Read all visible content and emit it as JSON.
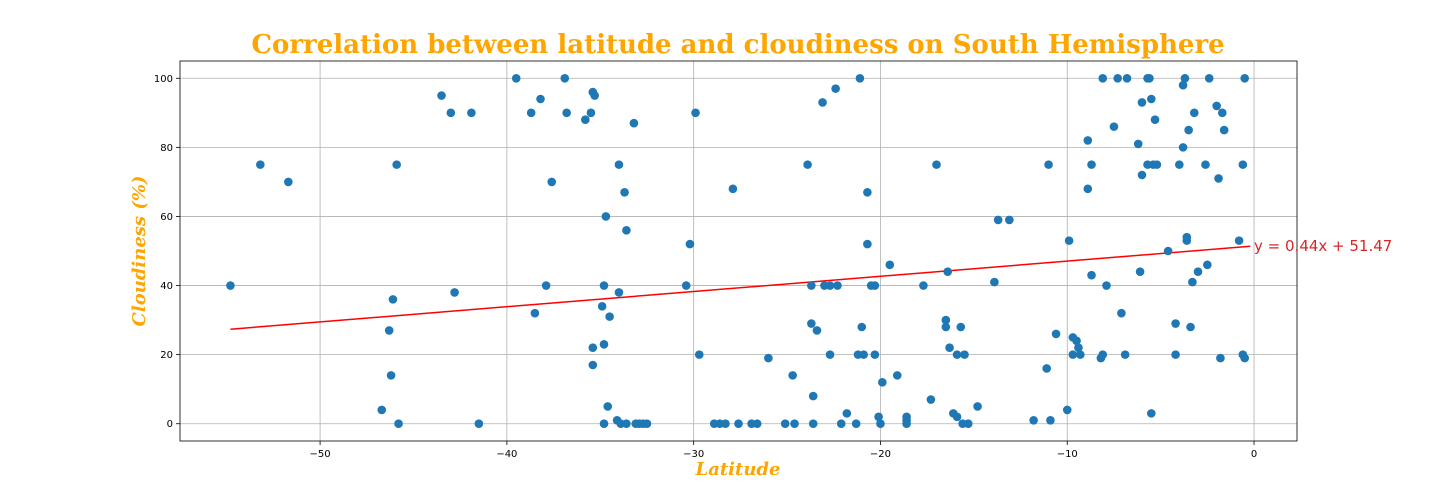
{
  "chart_data": {
    "type": "scatter",
    "title": "Correlation between latitude and cloudiness on South Hemisphere",
    "xlabel": "Latitude",
    "ylabel": "Cloudiness (%)",
    "xlim": [
      -57.5,
      2.3
    ],
    "ylim": [
      -5,
      105
    ],
    "x_ticks": [
      -50,
      -40,
      -30,
      -20,
      -10,
      0
    ],
    "x_tick_labels": [
      "−50",
      "−40",
      "−30",
      "−20",
      "−10",
      "0"
    ],
    "y_ticks": [
      0,
      20,
      40,
      60,
      80,
      100
    ],
    "y_tick_labels": [
      "0",
      "20",
      "40",
      "60",
      "80",
      "100"
    ],
    "grid": true,
    "title_color": "#FFA500",
    "label_color": "#FFA500",
    "point_color": "#1f77b4",
    "regression": {
      "slope": 0.44,
      "intercept": 51.47,
      "x_range": [
        -54.8,
        -0.2
      ],
      "color": "#ff0000",
      "equation_text": "y = 0.44x + 51.47",
      "equation_position": [
        0,
        50
      ]
    },
    "points": [
      [
        -54.8,
        40
      ],
      [
        -53.2,
        75
      ],
      [
        -51.7,
        70
      ],
      [
        -46.7,
        4
      ],
      [
        -46.3,
        27
      ],
      [
        -46.2,
        14
      ],
      [
        -46.1,
        36
      ],
      [
        -45.9,
        75
      ],
      [
        -45.8,
        0
      ],
      [
        -43.5,
        95
      ],
      [
        -43.0,
        90
      ],
      [
        -42.8,
        38
      ],
      [
        -41.9,
        90
      ],
      [
        -41.5,
        0
      ],
      [
        -39.5,
        100
      ],
      [
        -38.7,
        90
      ],
      [
        -38.5,
        32
      ],
      [
        -38.2,
        94
      ],
      [
        -37.9,
        40
      ],
      [
        -37.6,
        70
      ],
      [
        -36.9,
        100
      ],
      [
        -36.8,
        90
      ],
      [
        -35.8,
        88
      ],
      [
        -35.5,
        90
      ],
      [
        -35.4,
        96
      ],
      [
        -35.3,
        95
      ],
      [
        -35.4,
        22
      ],
      [
        -35.4,
        17
      ],
      [
        -34.9,
        34
      ],
      [
        -34.8,
        40
      ],
      [
        -34.8,
        23
      ],
      [
        -34.8,
        0
      ],
      [
        -34.7,
        60
      ],
      [
        -34.6,
        5
      ],
      [
        -34.5,
        31
      ],
      [
        -34.1,
        1
      ],
      [
        -34.0,
        75
      ],
      [
        -34.0,
        38
      ],
      [
        -33.9,
        0
      ],
      [
        -33.7,
        67
      ],
      [
        -33.6,
        56
      ],
      [
        -33.6,
        0
      ],
      [
        -33.2,
        87
      ],
      [
        -33.1,
        0
      ],
      [
        -32.9,
        0
      ],
      [
        -32.7,
        0
      ],
      [
        -32.5,
        0
      ],
      [
        -30.4,
        40
      ],
      [
        -30.2,
        52
      ],
      [
        -29.9,
        90
      ],
      [
        -29.7,
        20
      ],
      [
        -28.9,
        0
      ],
      [
        -28.6,
        0
      ],
      [
        -28.3,
        0
      ],
      [
        -27.9,
        68
      ],
      [
        -27.6,
        0
      ],
      [
        -26.9,
        0
      ],
      [
        -26.6,
        0
      ],
      [
        -26.0,
        19
      ],
      [
        -25.1,
        0
      ],
      [
        -24.7,
        14
      ],
      [
        -24.6,
        0
      ],
      [
        -23.9,
        75
      ],
      [
        -23.7,
        40
      ],
      [
        -23.7,
        29
      ],
      [
        -23.6,
        8
      ],
      [
        -23.6,
        0
      ],
      [
        -23.4,
        27
      ],
      [
        -23.1,
        93
      ],
      [
        -23.0,
        40
      ],
      [
        -22.7,
        40
      ],
      [
        -22.7,
        20
      ],
      [
        -22.4,
        97
      ],
      [
        -22.3,
        40
      ],
      [
        -22.1,
        0
      ],
      [
        -21.8,
        3
      ],
      [
        -21.3,
        0
      ],
      [
        -21.2,
        20
      ],
      [
        -21.1,
        100
      ],
      [
        -21.0,
        28
      ],
      [
        -20.9,
        20
      ],
      [
        -20.7,
        67
      ],
      [
        -20.7,
        52
      ],
      [
        -20.5,
        40
      ],
      [
        -20.3,
        40
      ],
      [
        -20.3,
        20
      ],
      [
        -20.1,
        2
      ],
      [
        -20.0,
        0
      ],
      [
        -19.9,
        12
      ],
      [
        -19.5,
        46
      ],
      [
        -19.1,
        14
      ],
      [
        -18.6,
        2
      ],
      [
        -18.6,
        1
      ],
      [
        -18.6,
        0
      ],
      [
        -17.7,
        40
      ],
      [
        -17.3,
        7
      ],
      [
        -17.0,
        75
      ],
      [
        -16.5,
        28
      ],
      [
        -16.5,
        30
      ],
      [
        -16.4,
        44
      ],
      [
        -16.3,
        22
      ],
      [
        -16.1,
        3
      ],
      [
        -15.9,
        2
      ],
      [
        -15.9,
        20
      ],
      [
        -15.7,
        28
      ],
      [
        -15.6,
        0
      ],
      [
        -15.5,
        20
      ],
      [
        -15.3,
        0
      ],
      [
        -14.8,
        5
      ],
      [
        -13.9,
        41
      ],
      [
        -13.7,
        59
      ],
      [
        -13.1,
        59
      ],
      [
        -11.8,
        1
      ],
      [
        -11.1,
        16
      ],
      [
        -11.0,
        75
      ],
      [
        -10.9,
        1
      ],
      [
        -10.6,
        26
      ],
      [
        -10.0,
        4
      ],
      [
        -9.9,
        53
      ],
      [
        -9.7,
        20
      ],
      [
        -9.7,
        25
      ],
      [
        -9.5,
        24
      ],
      [
        -9.4,
        22
      ],
      [
        -9.3,
        20
      ],
      [
        -8.9,
        82
      ],
      [
        -8.9,
        68
      ],
      [
        -8.7,
        75
      ],
      [
        -8.7,
        43
      ],
      [
        -8.2,
        19
      ],
      [
        -8.1,
        100
      ],
      [
        -8.1,
        20
      ],
      [
        -7.9,
        40
      ],
      [
        -7.5,
        86
      ],
      [
        -7.3,
        100
      ],
      [
        -7.1,
        32
      ],
      [
        -6.9,
        20
      ],
      [
        -6.8,
        100
      ],
      [
        -6.2,
        81
      ],
      [
        -6.1,
        44
      ],
      [
        -6.0,
        93
      ],
      [
        -6.0,
        72
      ],
      [
        -5.7,
        75
      ],
      [
        -5.7,
        100
      ],
      [
        -5.6,
        100
      ],
      [
        -5.5,
        3
      ],
      [
        -5.5,
        94
      ],
      [
        -5.4,
        75
      ],
      [
        -5.3,
        88
      ],
      [
        -5.2,
        75
      ],
      [
        -4.6,
        50
      ],
      [
        -4.2,
        29
      ],
      [
        -4.2,
        20
      ],
      [
        -4.0,
        75
      ],
      [
        -3.8,
        80
      ],
      [
        -3.8,
        98
      ],
      [
        -3.7,
        100
      ],
      [
        -3.6,
        53
      ],
      [
        -3.6,
        54
      ],
      [
        -3.5,
        85
      ],
      [
        -3.4,
        28
      ],
      [
        -3.3,
        41
      ],
      [
        -3.2,
        90
      ],
      [
        -3.0,
        44
      ],
      [
        -2.6,
        75
      ],
      [
        -2.5,
        46
      ],
      [
        -2.4,
        100
      ],
      [
        -2.0,
        92
      ],
      [
        -1.9,
        71
      ],
      [
        -1.8,
        19
      ],
      [
        -1.7,
        90
      ],
      [
        -1.6,
        85
      ],
      [
        -0.8,
        53
      ],
      [
        -0.6,
        75
      ],
      [
        -0.6,
        20
      ],
      [
        -0.5,
        100
      ],
      [
        -0.5,
        19
      ]
    ]
  }
}
